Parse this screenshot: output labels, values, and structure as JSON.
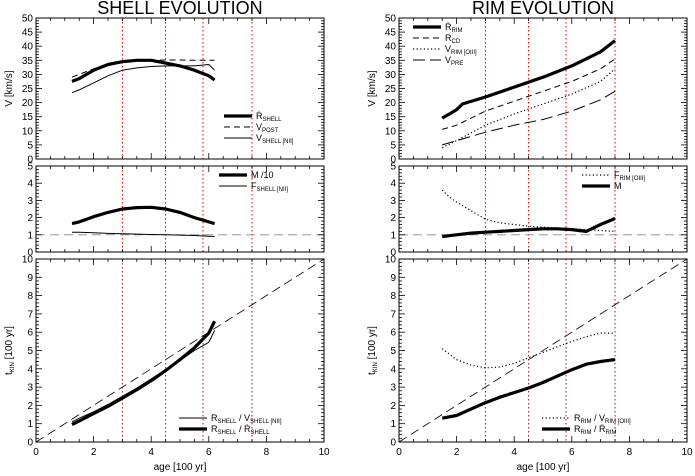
{
  "chart_data": [
    {
      "id": "shell_v",
      "column": "left",
      "row": 0,
      "type": "line",
      "title": "SHELL EVOLUTION",
      "ylabel": "V [km/s]",
      "ylabel_main": "V",
      "ylabel_unit": "[km/s]",
      "xlim": [
        0,
        10
      ],
      "ylim": [
        0,
        50
      ],
      "xticks": [
        0,
        2,
        4,
        6,
        8,
        10
      ],
      "yticks": [
        0,
        5,
        10,
        15,
        20,
        25,
        30,
        35,
        40,
        45,
        50
      ],
      "xticklabels_shown": false,
      "legend_position": "bottom-right",
      "series": [
        {
          "name": "Ṙ SHELL",
          "name_main": "Ṙ",
          "name_sub": "SHELL",
          "style": "thick",
          "x": [
            1.25,
            1.5,
            2.0,
            2.5,
            3.0,
            3.5,
            4.0,
            4.5,
            5.0,
            5.5,
            6.0,
            6.2
          ],
          "y": [
            27.5,
            28.5,
            31.5,
            33.5,
            34.5,
            35.0,
            35.0,
            34.0,
            33.0,
            31.5,
            29.5,
            28.0
          ]
        },
        {
          "name": "V POST",
          "name_main": "V",
          "name_sub": "POST",
          "style": "dashed",
          "x": [
            1.25,
            1.5,
            2.0,
            2.5,
            3.0,
            3.5,
            4.0,
            4.5,
            5.0,
            5.5,
            6.0,
            6.2
          ],
          "y": [
            29.0,
            30.0,
            32.0,
            33.5,
            34.2,
            34.7,
            35.0,
            35.1,
            35.1,
            35.0,
            35.0,
            35.0
          ]
        },
        {
          "name": "V SHELL [NII]",
          "name_main": "V",
          "name_sub": "SHELL [NII]",
          "style": "thin",
          "x": [
            1.25,
            1.5,
            2.0,
            2.5,
            3.0,
            3.5,
            4.0,
            4.5,
            5.0,
            5.5,
            6.0,
            6.2
          ],
          "y": [
            23.5,
            24.5,
            27.0,
            29.5,
            31.5,
            32.3,
            32.8,
            33.0,
            33.0,
            33.0,
            33.5,
            31.5
          ]
        }
      ]
    },
    {
      "id": "shell_m",
      "column": "left",
      "row": 1,
      "type": "line",
      "xlim": [
        0,
        10
      ],
      "ylim": [
        0,
        5
      ],
      "xticks": [
        0,
        2,
        4,
        6,
        8,
        10
      ],
      "yticks": [
        0,
        1,
        2,
        3,
        4,
        5
      ],
      "xticklabels_shown": false,
      "hline": 1,
      "legend_position": "top-right",
      "series": [
        {
          "name": "M /10",
          "name_main": "M /10",
          "name_sub": "",
          "style": "thick",
          "x": [
            1.25,
            1.5,
            2.0,
            2.5,
            3.0,
            3.5,
            4.0,
            4.5,
            5.0,
            5.5,
            6.0,
            6.2
          ],
          "y": [
            1.65,
            1.75,
            2.05,
            2.3,
            2.5,
            2.58,
            2.6,
            2.5,
            2.3,
            2.0,
            1.75,
            1.65
          ]
        },
        {
          "name": "F SHELL [NII]",
          "name_main": "F",
          "name_sub": "SHELL [NII]",
          "style": "thin",
          "x": [
            1.25,
            1.5,
            2.0,
            2.5,
            3.0,
            3.5,
            4.0,
            4.5,
            5.0,
            5.5,
            6.0,
            6.2
          ],
          "y": [
            1.15,
            1.15,
            1.12,
            1.08,
            1.06,
            1.04,
            1.02,
            1.0,
            0.98,
            0.96,
            0.92,
            0.9
          ]
        }
      ]
    },
    {
      "id": "shell_t",
      "column": "left",
      "row": 2,
      "type": "line",
      "ylabel": "t KIN [100 yr]",
      "ylabel_main": "t",
      "ylabel_sub": "KIN",
      "ylabel_unit": "[100 yr]",
      "xlabel": "age [100 yr]",
      "xlim": [
        0,
        10
      ],
      "ylim": [
        0,
        10
      ],
      "xticks": [
        0,
        2,
        4,
        6,
        8,
        10
      ],
      "yticks": [
        0,
        1,
        2,
        3,
        4,
        5,
        6,
        7,
        8,
        9,
        10
      ],
      "xticklabels_shown": true,
      "diagonal": true,
      "legend_position": "bottom-right",
      "series": [
        {
          "name": "R SHELL / V SHELL [NII]",
          "style": "thin",
          "legend_parts": [
            [
              "R",
              "SHELL"
            ],
            [
              "/ V",
              "SHELL [NII]"
            ]
          ],
          "x": [
            1.25,
            1.5,
            2.0,
            2.5,
            3.0,
            3.5,
            4.0,
            4.5,
            5.0,
            5.5,
            6.0,
            6.2
          ],
          "y": [
            1.1,
            1.3,
            1.65,
            2.05,
            2.5,
            2.95,
            3.45,
            3.95,
            4.45,
            5.0,
            5.45,
            6.1
          ]
        },
        {
          "name": "R SHELL / Ṙ SHELL",
          "style": "thick",
          "legend_parts": [
            [
              "R",
              "SHELL"
            ],
            [
              "/ Ṙ",
              "SHELL"
            ]
          ],
          "x": [
            1.25,
            1.5,
            2.0,
            2.5,
            3.0,
            3.5,
            4.0,
            4.5,
            5.0,
            5.5,
            6.0,
            6.2
          ],
          "y": [
            0.95,
            1.15,
            1.55,
            1.95,
            2.4,
            2.85,
            3.35,
            3.9,
            4.5,
            5.15,
            5.95,
            6.6
          ]
        }
      ]
    },
    {
      "id": "rim_v",
      "column": "right",
      "row": 0,
      "type": "line",
      "title": "RIM EVOLUTION",
      "ylabel": "V [km/s]",
      "ylabel_main": "V",
      "ylabel_unit": "[km/s]",
      "xlim": [
        0,
        10
      ],
      "ylim": [
        0,
        50
      ],
      "xticks": [
        0,
        2,
        4,
        6,
        8,
        10
      ],
      "yticks": [
        0,
        5,
        10,
        15,
        20,
        25,
        30,
        35,
        40,
        45,
        50
      ],
      "xticklabels_shown": false,
      "legend_position": "top-left",
      "series": [
        {
          "name": "Ṙ RIM",
          "name_main": "Ṙ",
          "name_sub": "RIM",
          "style": "thick",
          "x": [
            1.5,
            2.0,
            2.2,
            3.0,
            4.0,
            5.0,
            6.0,
            7.0,
            7.5
          ],
          "y": [
            14.5,
            17.5,
            19.5,
            22.0,
            25.5,
            29.0,
            33.0,
            38.0,
            42.0
          ]
        },
        {
          "name": "R CD",
          "name_main": "R",
          "name_sub": "CD",
          "style": "dashed",
          "x": [
            1.5,
            2.0,
            3.0,
            4.0,
            5.0,
            6.0,
            7.0,
            7.5
          ],
          "y": [
            10.5,
            12.0,
            17.0,
            20.5,
            24.0,
            27.5,
            32.0,
            35.5
          ]
        },
        {
          "name": "V RIM [OIII]",
          "name_main": "V",
          "name_sub": "RIM [OIII]",
          "style": "dotted",
          "x": [
            1.5,
            2.0,
            3.0,
            4.0,
            5.0,
            6.0,
            7.0,
            7.5
          ],
          "y": [
            4.0,
            6.5,
            12.0,
            16.0,
            19.5,
            23.0,
            27.5,
            32.0
          ]
        },
        {
          "name": "V PRE",
          "name_main": "V",
          "name_sub": "PRE",
          "style": "longdash",
          "x": [
            1.5,
            2.0,
            3.0,
            4.0,
            5.0,
            6.0,
            7.0,
            7.5
          ],
          "y": [
            5.0,
            6.5,
            9.5,
            12.0,
            14.0,
            17.0,
            21.0,
            24.0
          ]
        }
      ]
    },
    {
      "id": "rim_m",
      "column": "right",
      "row": 1,
      "type": "line",
      "xlim": [
        0,
        10
      ],
      "ylim": [
        0,
        5
      ],
      "xticks": [
        0,
        2,
        4,
        6,
        8,
        10
      ],
      "yticks": [
        0,
        1,
        2,
        3,
        4,
        5
      ],
      "xticklabels_shown": false,
      "hline": 1,
      "legend_position": "top-right",
      "series": [
        {
          "name": "F RIM [OIII]",
          "name_main": "F",
          "name_sub": "RIM [OIII]",
          "style": "dotted",
          "x": [
            1.5,
            1.75,
            2.0,
            2.5,
            3.0,
            3.5,
            4.0,
            4.5,
            5.0,
            5.5,
            6.0,
            6.5,
            7.0,
            7.5
          ],
          "y": [
            3.6,
            3.2,
            2.9,
            2.4,
            1.9,
            1.7,
            1.6,
            1.5,
            1.45,
            1.4,
            1.35,
            1.3,
            1.25,
            1.2
          ]
        },
        {
          "name": "M",
          "name_main": "M",
          "name_sub": "",
          "style": "thick",
          "x": [
            1.5,
            2.0,
            2.5,
            3.0,
            3.5,
            4.0,
            4.5,
            5.0,
            5.5,
            6.0,
            6.5,
            7.0,
            7.5
          ],
          "y": [
            0.9,
            1.0,
            1.1,
            1.15,
            1.2,
            1.25,
            1.3,
            1.35,
            1.35,
            1.3,
            1.2,
            1.6,
            1.95
          ]
        }
      ]
    },
    {
      "id": "rim_t",
      "column": "right",
      "row": 2,
      "type": "line",
      "ylabel": "t KIN [100 yr]",
      "ylabel_main": "t",
      "ylabel_sub": "KIN",
      "ylabel_unit": "[100 yr]",
      "xlabel": "age [100 yr]",
      "xlim": [
        0,
        10
      ],
      "ylim": [
        0,
        10
      ],
      "xticks": [
        0,
        2,
        4,
        6,
        8,
        10
      ],
      "yticks": [
        0,
        1,
        2,
        3,
        4,
        5,
        6,
        7,
        8,
        9,
        10
      ],
      "xticklabels_shown": true,
      "diagonal": true,
      "legend_position": "bottom-right",
      "series": [
        {
          "name": "R RIM / V RIM [OIII]",
          "style": "dotted",
          "legend_parts": [
            [
              "R",
              "RIM"
            ],
            [
              "/ V",
              "RIM [OIII]"
            ]
          ],
          "x": [
            1.5,
            2.0,
            2.5,
            3.0,
            3.5,
            4.0,
            4.5,
            5.0,
            5.5,
            6.0,
            6.5,
            7.0,
            7.5
          ],
          "y": [
            5.1,
            4.5,
            4.2,
            4.05,
            4.1,
            4.3,
            4.6,
            4.9,
            5.2,
            5.5,
            5.75,
            5.95,
            5.95
          ]
        },
        {
          "name": "R RIM / Ṙ RIM",
          "style": "thick",
          "legend_parts": [
            [
              "R",
              "RIM"
            ],
            [
              "/ Ṙ",
              "RIM"
            ]
          ],
          "x": [
            1.5,
            2.0,
            2.5,
            3.0,
            3.5,
            4.0,
            4.5,
            5.0,
            5.5,
            6.0,
            6.5,
            7.0,
            7.5
          ],
          "y": [
            1.3,
            1.45,
            1.8,
            2.15,
            2.45,
            2.7,
            2.95,
            3.25,
            3.6,
            3.95,
            4.25,
            4.4,
            4.5
          ]
        }
      ]
    }
  ],
  "reference_lines_x": [
    3.0,
    4.5,
    5.8,
    7.5
  ],
  "colors": {
    "axis": "#000000",
    "reference": "#cc0000",
    "guide": "#888888"
  }
}
